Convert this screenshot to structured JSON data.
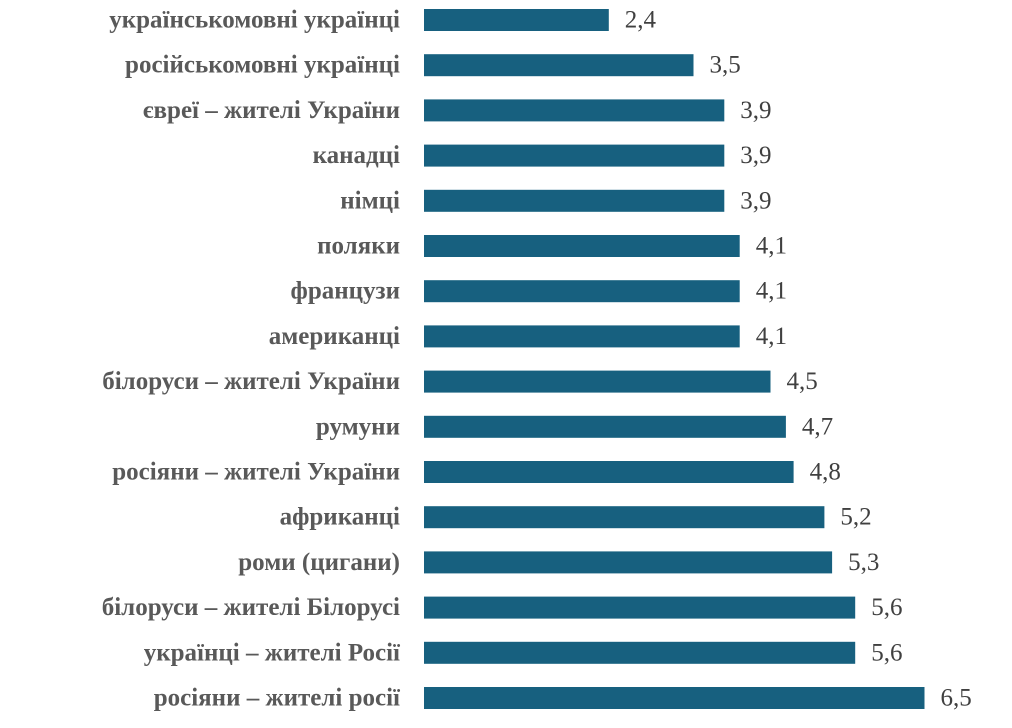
{
  "chart_data": {
    "type": "bar",
    "orientation": "horizontal",
    "categories": [
      "українськомовні українці",
      "російськомовні українці",
      "євреї – жителі України",
      "канадці",
      "німці",
      "поляки",
      "французи",
      "американці",
      "білоруси – жителі України",
      "румуни",
      "росіяни – жителі України",
      "африканці",
      "роми (цигани)",
      "білоруси – жителі Білорусі",
      "українці – жителі Росії",
      "росіяни – жителі росії"
    ],
    "values": [
      2.4,
      3.5,
      3.9,
      3.9,
      3.9,
      4.1,
      4.1,
      4.1,
      4.5,
      4.7,
      4.8,
      5.2,
      5.3,
      5.6,
      5.6,
      6.5
    ],
    "value_labels": [
      "2,4",
      "3,5",
      "3,9",
      "3,9",
      "3,9",
      "4,1",
      "4,1",
      "4,1",
      "4,5",
      "4,7",
      "4,8",
      "5,2",
      "5,3",
      "5,6",
      "5,6",
      "6,5"
    ],
    "bar_color": "#17607F",
    "grid": false,
    "legend": "none"
  }
}
